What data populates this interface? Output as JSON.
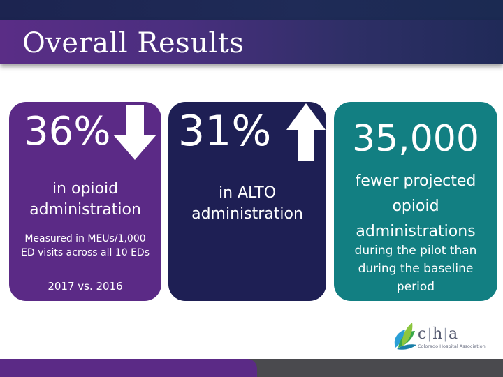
{
  "slide": {
    "title": "Overall Results"
  },
  "cards": [
    {
      "big_value": "36%",
      "arrow": "arrow-down-icon",
      "main_text": "in opioid administration",
      "sub_text": "Measured in MEUs/1,000 ED visits across all 10 EDs",
      "year_text": "2017 vs. 2016",
      "color": "#5b2a86"
    },
    {
      "big_value": "31%",
      "arrow": "arrow-up-icon",
      "main_text": "in ALTO administration",
      "color": "#1e1f54"
    },
    {
      "big_value": "35,000",
      "main_text": "fewer projected opioid administrations",
      "sub_text": "during the pilot than during the baseline period",
      "color": "#127f82"
    }
  ],
  "logo": {
    "letter_c": "c",
    "letter_h": "h",
    "letter_a": "a",
    "subtitle": "Colorado Hospital Association"
  }
}
